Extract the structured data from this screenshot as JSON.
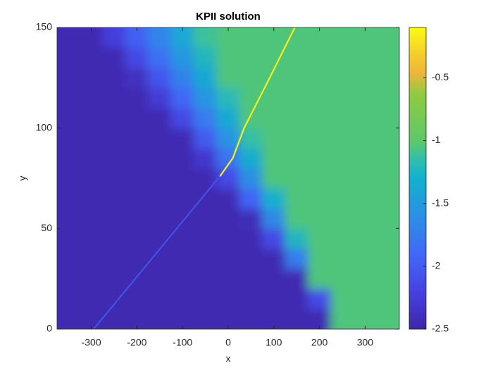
{
  "chart_data": {
    "type": "heatmap",
    "title": "KPII solution",
    "xlabel": "x",
    "ylabel": "y",
    "xlim": [
      -375,
      375
    ],
    "ylim": [
      0,
      150
    ],
    "xticks": [
      -300,
      -200,
      -100,
      0,
      100,
      200,
      300
    ],
    "yticks": [
      0,
      50,
      100,
      150
    ],
    "clim": [
      -2.5,
      -0.1
    ],
    "cticks": [
      -2.5,
      -2,
      -1.5,
      -1,
      -0.5
    ],
    "colormap": "parula",
    "x": [
      -350,
      -300,
      -250,
      -200,
      -150,
      -100,
      -50,
      0,
      50,
      100,
      150,
      200,
      250,
      300,
      350
    ],
    "y": [
      5,
      15,
      25,
      35,
      45,
      55,
      65,
      75,
      85,
      95,
      105,
      115,
      125,
      135,
      145
    ],
    "z": [
      [
        -2.45,
        -2.45,
        -2.45,
        -2.45,
        -2.45,
        -2.45,
        -2.45,
        -2.45,
        -2.45,
        -2.45,
        -2.45,
        -2.45,
        -1.05,
        -1.05,
        -1.05
      ],
      [
        -2.45,
        -2.45,
        -2.45,
        -2.45,
        -2.45,
        -2.45,
        -2.45,
        -2.45,
        -2.45,
        -2.45,
        -2.45,
        -2.14,
        -1.05,
        -1.05,
        -1.05
      ],
      [
        -2.45,
        -2.45,
        -2.45,
        -2.45,
        -2.45,
        -2.45,
        -2.45,
        -2.45,
        -2.45,
        -2.45,
        -2.45,
        -1.05,
        -1.05,
        -1.05,
        -1.05
      ],
      [
        -2.45,
        -2.45,
        -2.45,
        -2.45,
        -2.45,
        -2.45,
        -2.45,
        -2.45,
        -2.45,
        -2.45,
        -1.75,
        -1.05,
        -1.05,
        -1.05,
        -1.05
      ],
      [
        -2.45,
        -2.45,
        -2.45,
        -2.45,
        -2.45,
        -2.45,
        -2.45,
        -2.45,
        -2.45,
        -2.15,
        -1.23,
        -1.05,
        -1.05,
        -1.05,
        -1.05
      ],
      [
        -2.45,
        -2.45,
        -2.45,
        -2.45,
        -2.45,
        -2.45,
        -2.45,
        -2.45,
        -2.4,
        -1.65,
        -1.05,
        -1.05,
        -1.05,
        -1.05,
        -1.05
      ],
      [
        -2.45,
        -2.45,
        -2.45,
        -2.45,
        -2.45,
        -2.45,
        -2.45,
        -2.45,
        -1.93,
        -1.3,
        -1.05,
        -1.05,
        -1.05,
        -1.05,
        -1.05
      ],
      [
        -2.45,
        -2.45,
        -2.45,
        -2.45,
        -2.45,
        -2.45,
        -2.45,
        -2.15,
        -1.6,
        -1.05,
        -1.05,
        -1.05,
        -1.05,
        -1.05,
        -1.05
      ],
      [
        -2.45,
        -2.45,
        -2.45,
        -2.45,
        -2.45,
        -2.45,
        -2.31,
        -1.82,
        -1.34,
        -1.05,
        -1.05,
        -1.05,
        -1.05,
        -1.05,
        -1.05
      ],
      [
        -2.45,
        -2.45,
        -2.45,
        -2.45,
        -2.45,
        -2.44,
        -2.0,
        -1.57,
        -1.13,
        -1.05,
        -1.05,
        -1.05,
        -1.05,
        -1.05,
        -1.05
      ],
      [
        -2.45,
        -2.45,
        -2.45,
        -2.45,
        -2.45,
        -2.15,
        -1.76,
        -1.36,
        -1.05,
        -1.05,
        -1.05,
        -1.05,
        -1.05,
        -1.05,
        -1.05
      ],
      [
        -2.45,
        -2.45,
        -2.45,
        -2.45,
        -2.27,
        -1.91,
        -1.55,
        -1.19,
        -1.05,
        -1.05,
        -1.05,
        -1.05,
        -1.05,
        -1.05,
        -1.05
      ],
      [
        -2.45,
        -2.45,
        -2.45,
        -2.37,
        -2.04,
        -1.71,
        -1.38,
        -1.05,
        -1.05,
        -1.05,
        -1.05,
        -1.05,
        -1.05,
        -1.05,
        -1.05
      ],
      [
        -2.45,
        -2.45,
        -2.45,
        -2.15,
        -1.84,
        -1.54,
        -1.23,
        -1.05,
        -1.05,
        -1.05,
        -1.05,
        -1.05,
        -1.05,
        -1.05,
        -1.05
      ],
      [
        -2.45,
        -2.45,
        -2.24,
        -1.96,
        -1.68,
        -1.39,
        -1.11,
        -1.05,
        -1.05,
        -1.05,
        -1.05,
        -1.05,
        -1.05,
        -1.05,
        -1.05
      ]
    ],
    "lines": [
      {
        "x": [
          -295,
          -18
        ],
        "y": [
          0,
          76
        ],
        "z": -2.1
      },
      {
        "x": [
          -18,
          10,
          35,
          91,
          146
        ],
        "y": [
          76,
          85,
          100,
          125,
          150
        ],
        "z": -0.15
      }
    ]
  }
}
